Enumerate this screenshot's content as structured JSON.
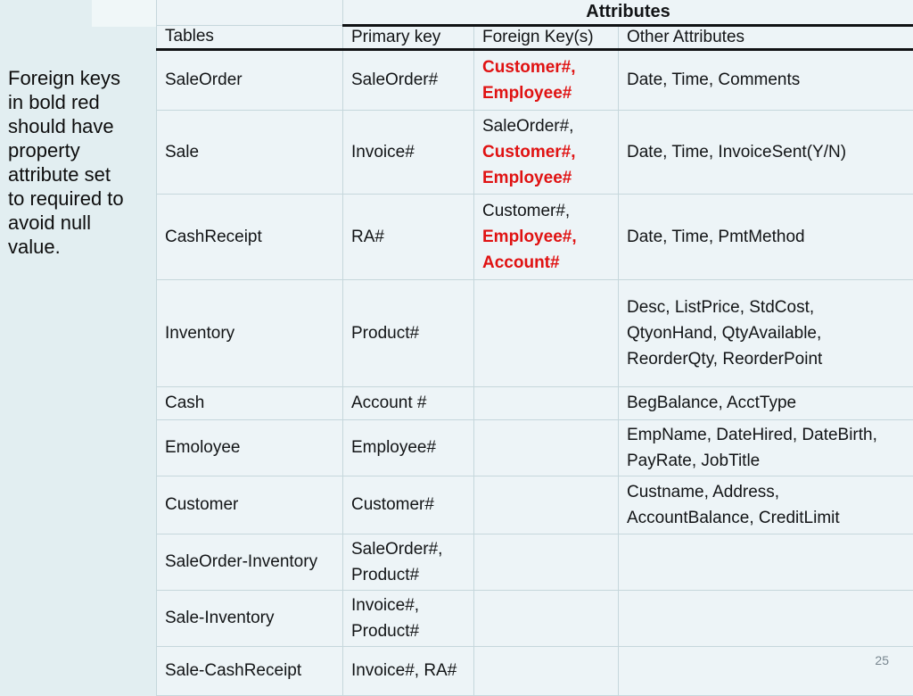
{
  "slide": {
    "background_color": "#e2eef1",
    "note_text": "Foreign keys\nin bold red\nshould have\nproperty\nattribute set\nto required to\navoid null\nvalue.",
    "page_number": "25"
  },
  "table": {
    "attributes_header": "Attributes",
    "columns": [
      "Tables",
      "Primary key",
      "Foreign Key(s)",
      "Other Attributes"
    ],
    "accent_red": "#e01212",
    "rows": [
      {
        "table": "SaleOrder",
        "primary_key": "SaleOrder#",
        "foreign_keys": [
          {
            "text": "Customer#,",
            "red": true
          },
          {
            "text": "Employee#",
            "red": true
          }
        ],
        "other_attributes": "Date, Time, Comments"
      },
      {
        "table": "Sale",
        "primary_key": "Invoice#",
        "foreign_keys": [
          {
            "text": "SaleOrder#,",
            "red": false
          },
          {
            "text": "Customer#,",
            "red": true
          },
          {
            "text": "Employee#",
            "red": true
          }
        ],
        "other_attributes": "Date, Time, InvoiceSent(Y/N)"
      },
      {
        "table": "CashReceipt",
        "primary_key": "RA#",
        "foreign_keys": [
          {
            "text": "Customer#,",
            "red": false
          },
          {
            "text": "Employee#,",
            "red": true
          },
          {
            "text": "Account#",
            "red": true
          }
        ],
        "other_attributes": "Date, Time, PmtMethod"
      },
      {
        "table": "Inventory",
        "primary_key": "Product#",
        "foreign_keys": [],
        "other_attributes": "Desc, ListPrice, StdCost,\nQtyonHand, QtyAvailable,\nReorderQty, ReorderPoint"
      },
      {
        "table": "Cash",
        "primary_key": "Account #",
        "foreign_keys": [],
        "other_attributes": "BegBalance, AcctType"
      },
      {
        "table": "Emoloyee",
        "primary_key": "Employee#",
        "foreign_keys": [],
        "other_attributes": "EmpName, DateHired, DateBirth,\nPayRate, JobTitle"
      },
      {
        "table": "Customer",
        "primary_key": "Customer#",
        "foreign_keys": [],
        "other_attributes": "Custname, Address,\nAccountBalance, CreditLimit"
      },
      {
        "table": "SaleOrder-Inventory",
        "primary_key": "SaleOrder#,\nProduct#",
        "foreign_keys": [],
        "other_attributes": ""
      },
      {
        "table": "Sale-Inventory",
        "primary_key": "Invoice#,\nProduct#",
        "foreign_keys": [],
        "other_attributes": ""
      },
      {
        "table": "Sale-CashReceipt",
        "primary_key": "Invoice#, RA#",
        "foreign_keys": [],
        "other_attributes": ""
      }
    ]
  }
}
